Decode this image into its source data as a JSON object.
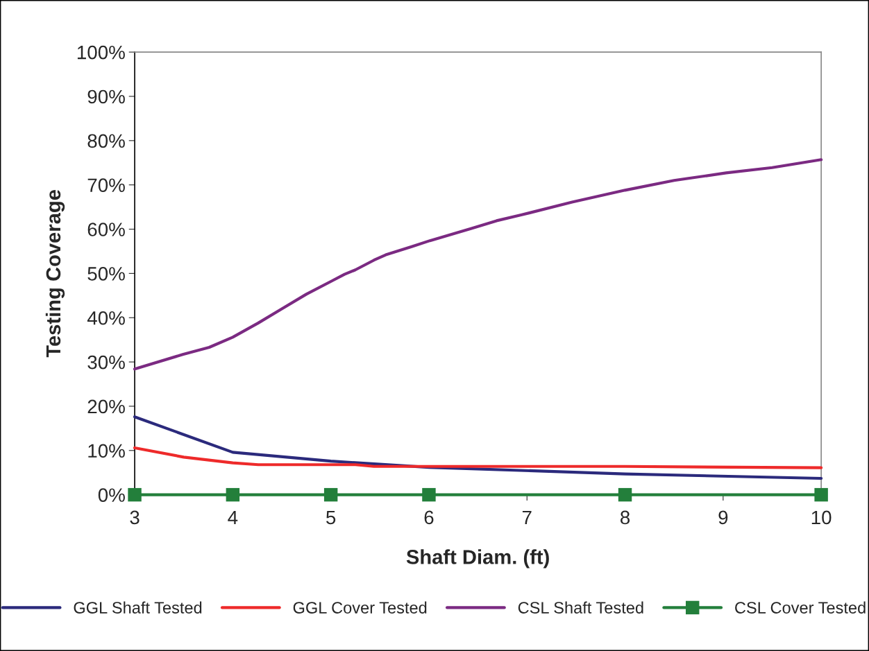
{
  "chart_data": {
    "type": "line",
    "xlabel": "Shaft Diam. (ft)",
    "ylabel": "Testing Coverage",
    "xlim": [
      3,
      10
    ],
    "xticks": [
      3,
      4,
      5,
      6,
      7,
      8,
      9,
      10
    ],
    "ylim": [
      0,
      100
    ],
    "yticks": [
      {
        "value": 0,
        "label": "0%"
      },
      {
        "value": 10,
        "label": "10%"
      },
      {
        "value": 20,
        "label": "20%"
      },
      {
        "value": 30,
        "label": "30%"
      },
      {
        "value": 40,
        "label": "40%"
      },
      {
        "value": 50,
        "label": "50%"
      },
      {
        "value": 60,
        "label": "60%"
      },
      {
        "value": 70,
        "label": "70%"
      },
      {
        "value": 80,
        "label": "80%"
      },
      {
        "value": 90,
        "label": "90%"
      },
      {
        "value": 100,
        "label": "100%"
      }
    ],
    "grid": false,
    "legend": "bottom",
    "marker": "none",
    "line_style": "solid",
    "series": [
      {
        "name": "GGL Shaft Tested",
        "color": "#2b2a7c",
        "x": [
          3,
          4,
          5,
          6,
          8,
          10
        ],
        "values": [
          17.6,
          9.6,
          7.6,
          6.2,
          4.7,
          3.7
        ]
      },
      {
        "name": "GGL Cover Tested",
        "color": "#ee2a2a",
        "x": [
          3,
          3.5,
          4,
          4.26,
          5.25,
          5.44,
          8,
          10
        ],
        "values": [
          10.6,
          8.5,
          7.2,
          6.8,
          6.8,
          6.4,
          6.4,
          6.1
        ]
      },
      {
        "name": "CSL Shaft Tested",
        "color": "#7b2a82",
        "x": [
          3,
          3.49,
          3.76,
          4.0,
          4.26,
          4.5,
          4.75,
          5.01,
          5.14,
          5.25,
          5.44,
          5.56,
          5.83,
          6.01,
          6.44,
          6.69,
          6.94,
          7.46,
          8.0,
          8.5,
          9.03,
          9.5,
          10
        ],
        "values": [
          28.4,
          31.7,
          33.3,
          35.6,
          38.8,
          42.0,
          45.3,
          48.3,
          49.8,
          50.8,
          53.0,
          54.2,
          56.1,
          57.4,
          60.2,
          61.9,
          63.2,
          66.1,
          68.8,
          71.0,
          72.7,
          73.9,
          75.7
        ]
      },
      {
        "name": "CSL Cover Tested",
        "color": "#237f3b",
        "marker": "square",
        "x": [
          3,
          4,
          5,
          6,
          8,
          10
        ],
        "values": [
          0,
          0,
          0,
          0,
          0,
          0
        ]
      }
    ]
  }
}
